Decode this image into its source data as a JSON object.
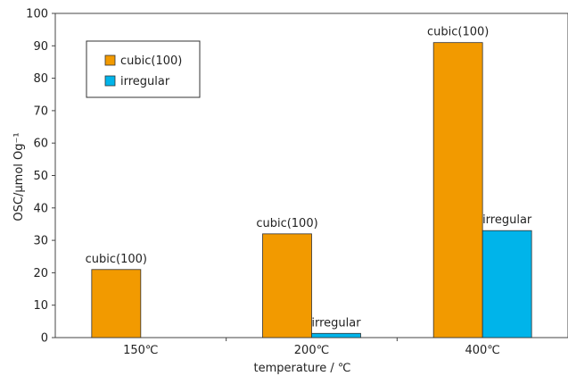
{
  "chart_data": {
    "type": "bar",
    "categories": [
      "150℃",
      "200℃",
      "400℃"
    ],
    "series": [
      {
        "name": "cubic(100)",
        "color": "#f29a00",
        "values": [
          21,
          32,
          91
        ]
      },
      {
        "name": "irregular",
        "color": "#00b4ea",
        "values": [
          0,
          1.3,
          33
        ]
      }
    ],
    "data_labels": [
      [
        "cubic(100)",
        "cubic(100)",
        "cubic(100)"
      ],
      [
        "",
        "irregular",
        "irregular"
      ]
    ],
    "xlabel": "temperature / ℃",
    "ylabel": "OSC/µmol Og⁻¹",
    "ylim": [
      0,
      100
    ],
    "yticks": [
      0,
      10,
      20,
      30,
      40,
      50,
      60,
      70,
      80,
      90,
      100
    ],
    "legend_position": "top-left",
    "grid": false
  }
}
